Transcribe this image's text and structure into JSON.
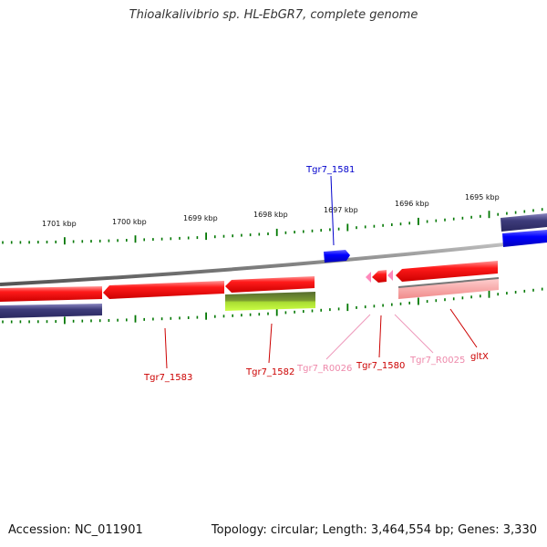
{
  "title": "Thioalkalivibrio sp. HL-EbGR7, complete genome",
  "footer": {
    "accession": "Accession: NC_011901",
    "summary": "Topology: circular; Length: 3,464,554 bp; Genes: 3,330"
  },
  "scale_labels": [
    "1701 kbp",
    "1700 kbp",
    "1699 kbp",
    "1698 kbp",
    "1697 kbp",
    "1696 kbp",
    "1695 kbp"
  ],
  "gene_labels": [
    {
      "text": "Tgr7_1581",
      "color": "#0000cc"
    },
    {
      "text": "Tgr7_1583",
      "color": "#cc0000"
    },
    {
      "text": "Tgr7_1582",
      "color": "#cc0000"
    },
    {
      "text": "Tgr7_R0026",
      "color": "#ee88aa"
    },
    {
      "text": "Tgr7_1580",
      "color": "#cc0000"
    },
    {
      "text": "Tgr7_R0025",
      "color": "#ee88aa"
    },
    {
      "text": "gltX",
      "color": "#cc0000"
    }
  ],
  "colors": {
    "cds": "#ff0000",
    "cds_other": "#3333cc",
    "rrna": "#ff88aa",
    "trna": "#ff88bb",
    "backbone": "#888888",
    "tick": "#007700",
    "dark_feature": "#3d3b7a",
    "green_feature": "#88cc00"
  }
}
